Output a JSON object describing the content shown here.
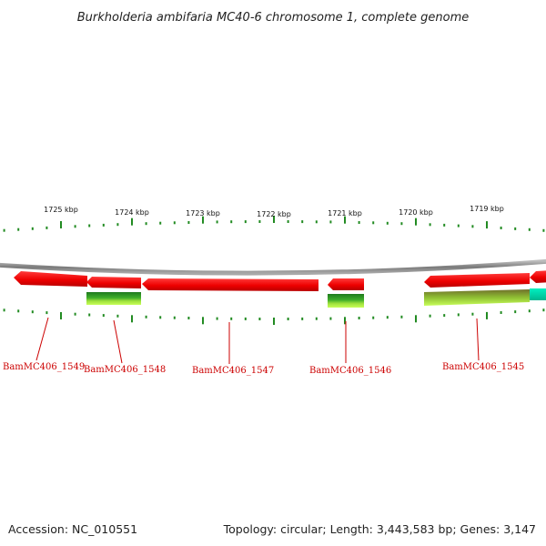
{
  "title": "Burkholderia ambifaria MC40-6 chromosome 1, complete genome",
  "footer": {
    "accession": "Accession: NC_010551",
    "summary": "Topology: circular; Length: 3,443,583 bp; Genes: 3,147"
  },
  "ruler": {
    "major_labels": [
      "1725 kbp",
      "1724 kbp",
      "1723 kbp",
      "1722 kbp",
      "1721 kbp",
      "1720 kbp",
      "1719 kbp"
    ]
  },
  "genes": [
    {
      "label": "BamMC406_1549"
    },
    {
      "label": "BamMC406_1548"
    },
    {
      "label": "BamMC406_1547"
    },
    {
      "label": "BamMC406_1546"
    },
    {
      "label": "BamMC406_1545"
    }
  ],
  "colors": {
    "cds": "#ff0000",
    "rna_green": "#228b22",
    "rna_light": "#adff2f",
    "tick": "#228b22",
    "backbone": "#888888",
    "label": "#cc0000",
    "edge_teal": "#00e0b0"
  }
}
